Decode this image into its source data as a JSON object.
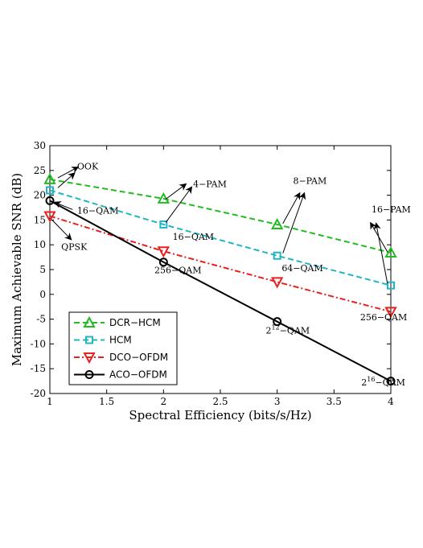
{
  "chart_data": {
    "type": "line",
    "xlabel": "Spectral Efficiency (bits/s/Hz)",
    "ylabel": "Maximum Achievable SNR (dB)",
    "xlim": [
      1,
      4
    ],
    "ylim": [
      -20,
      30
    ],
    "xticks": [
      1,
      1.5,
      2,
      2.5,
      3,
      3.5,
      4
    ],
    "xtick_labels": [
      "1",
      "1.5",
      "2",
      "2.5",
      "3",
      "3.5",
      "4"
    ],
    "yticks": [
      -20,
      -15,
      -10,
      -5,
      0,
      5,
      10,
      15,
      20,
      25,
      30
    ],
    "ytick_labels": [
      "-20",
      "-15",
      "-10",
      "-5",
      "0",
      "5",
      "10",
      "15",
      "20",
      "25",
      "30"
    ],
    "grid": false,
    "legend_position": "bottom-left",
    "series": [
      {
        "name": "DCR−HCM",
        "color": "#22bb22",
        "dash": "dashed",
        "marker": "triangle-up",
        "x": [
          1,
          2,
          3,
          4
        ],
        "values": [
          23.2,
          19.3,
          14.1,
          8.4
        ]
      },
      {
        "name": "HCM",
        "color": "#22b5c4",
        "dash": "dashed",
        "marker": "square",
        "x": [
          1,
          2,
          3,
          4
        ],
        "values": [
          21.0,
          14.1,
          7.8,
          1.8
        ]
      },
      {
        "name": "DCO−OFDM",
        "color": "#e82020",
        "dash": "dashdot",
        "marker": "triangle-down",
        "x": [
          1,
          2,
          3,
          4
        ],
        "values": [
          15.8,
          8.7,
          2.5,
          -3.5
        ]
      },
      {
        "name": "ACO−OFDM",
        "color": "#000000",
        "dash": "solid",
        "marker": "circle",
        "x": [
          1,
          2,
          3,
          4
        ],
        "values": [
          18.9,
          6.5,
          -5.5,
          -17.5
        ]
      }
    ],
    "annotations": [
      {
        "text": "OOK",
        "x": 1.24,
        "y": 25.2,
        "arrows": [
          [
            1.07,
            23.5,
            1.25,
            25.7
          ],
          [
            1.07,
            21.5,
            1.22,
            24.5
          ]
        ]
      },
      {
        "text": "16−QAM",
        "x": 1.24,
        "y": 16.3,
        "arrows": [
          [
            1.2,
            17.1,
            1.04,
            18.6
          ]
        ]
      },
      {
        "text": "QPSK",
        "x": 1.1,
        "y": 9.0,
        "arrows": [
          [
            1.02,
            15.0,
            1.19,
            11.0
          ]
        ]
      },
      {
        "text": "4−PAM",
        "x": 2.26,
        "y": 21.6,
        "arrows": [
          [
            2.02,
            19.2,
            2.2,
            22.3
          ],
          [
            2.02,
            14.5,
            2.25,
            21.7
          ]
        ]
      },
      {
        "text": "16−QAM",
        "x": 2.08,
        "y": 11.0
      },
      {
        "text": "256−QAM",
        "x": 1.92,
        "y": 4.3
      },
      {
        "text": "8−PAM",
        "x": 3.14,
        "y": 22.3,
        "arrows": [
          [
            3.05,
            14.3,
            3.2,
            20.5
          ],
          [
            3.05,
            8.3,
            3.24,
            20.5
          ]
        ]
      },
      {
        "text": "64−QAM",
        "x": 3.04,
        "y": 4.7
      },
      {
        "text": "2",
        "sup": "12",
        "suffix": "−QAM",
        "x": 2.9,
        "y": -7.9
      },
      {
        "text": "16−PAM",
        "x": 3.83,
        "y": 16.5,
        "arrows": [
          [
            3.97,
            8.6,
            3.82,
            14.5
          ],
          [
            3.97,
            2.2,
            3.87,
            14.4
          ]
        ]
      },
      {
        "text": "256−QAM",
        "x": 3.73,
        "y": -5.2
      },
      {
        "text": "2",
        "sup": "16",
        "suffix": "−QAM",
        "x": 3.74,
        "y": -18.4
      }
    ]
  }
}
